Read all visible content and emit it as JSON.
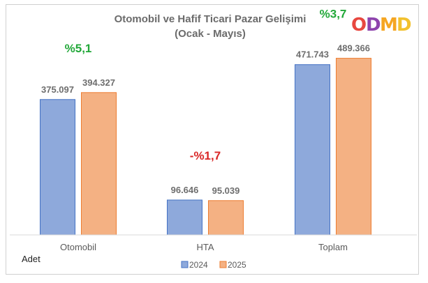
{
  "chart_data": {
    "type": "bar",
    "title": "Otomobil ve Hafif Ticari Pazar Gelişimi",
    "subtitle": "(Ocak - Mayıs)",
    "categories": [
      "Otomobil",
      "HTA",
      "Toplam"
    ],
    "series": [
      {
        "name": "2024",
        "values": [
          375097,
          96646,
          471743
        ],
        "labels": [
          "375.097",
          "96.646",
          "471.743"
        ],
        "color": "#8ea9db"
      },
      {
        "name": "2025",
        "values": [
          394327,
          95039,
          489366
        ],
        "labels": [
          "394.327",
          "95.039",
          "489.366"
        ],
        "color": "#f4b183"
      }
    ],
    "changes": [
      {
        "label": "%5,1",
        "color": "#22a839"
      },
      {
        "label": "-%1,7",
        "color": "#d92626"
      },
      {
        "label": "%3,7",
        "color": "#22a839"
      }
    ],
    "unit_label": "Adet",
    "ylim": [
      0,
      560000
    ],
    "grid": false,
    "legend_position": "bottom"
  },
  "logo": {
    "letters": [
      "O",
      "D",
      "M",
      "D"
    ],
    "colors": [
      "#e8473f",
      "#8e44ad",
      "#f5a623",
      "#f2c12e"
    ]
  }
}
